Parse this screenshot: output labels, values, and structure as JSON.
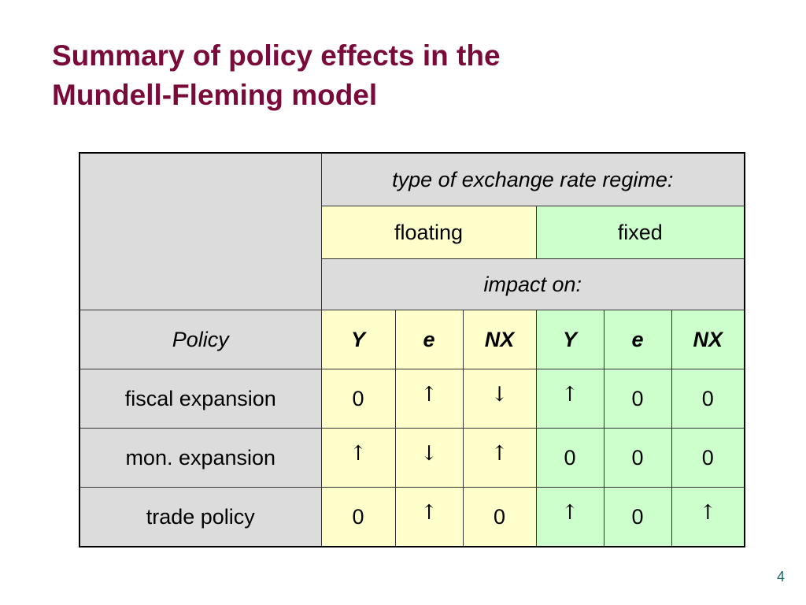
{
  "title": {
    "line1": "Summary of policy effects in the",
    "line2": "Mundell-Fleming model"
  },
  "table": {
    "regime_header": "type of exchange rate regime:",
    "regimes": {
      "floating": "floating",
      "fixed": "fixed"
    },
    "impact_header": "impact on:",
    "policy_header": "Policy",
    "variables": {
      "floating": [
        "Y",
        "e",
        "NX"
      ],
      "fixed": [
        "Y",
        "e",
        "NX"
      ]
    },
    "rows": [
      {
        "policy": "fiscal expansion",
        "floating": [
          "0",
          "↑",
          "↓"
        ],
        "fixed": [
          "↑",
          "0",
          "0"
        ]
      },
      {
        "policy": "mon. expansion",
        "floating": [
          "↑",
          "↓",
          "↑"
        ],
        "fixed": [
          "0",
          "0",
          "0"
        ]
      },
      {
        "policy": "trade policy",
        "floating": [
          "0",
          "↑",
          "0"
        ],
        "fixed": [
          "↑",
          "0",
          "↑"
        ]
      }
    ]
  },
  "page_number": "4",
  "colors": {
    "title": "#7a0a3a",
    "header_gray": "#dcdcdc",
    "floating_yellow": "#ffffcc",
    "fixed_green": "#ccffcc",
    "page_number": "#1a6a6a"
  }
}
